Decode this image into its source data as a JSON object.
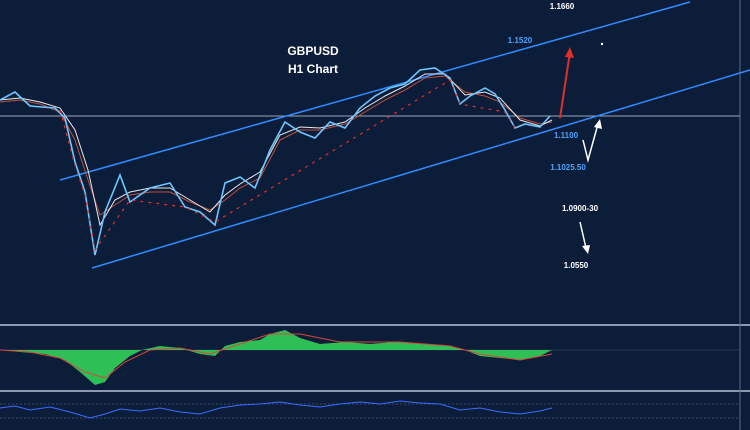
{
  "header": {
    "symbol": "GBPUSD",
    "timeframe": "H1 Chart"
  },
  "annotations": {
    "top_target": "1.1660",
    "upper_channel": "1.1520",
    "support": "1.1100",
    "channel_support": "1.1025.50",
    "lower_target": "1.0900-30",
    "bottom_target": "1.0550"
  }
}
